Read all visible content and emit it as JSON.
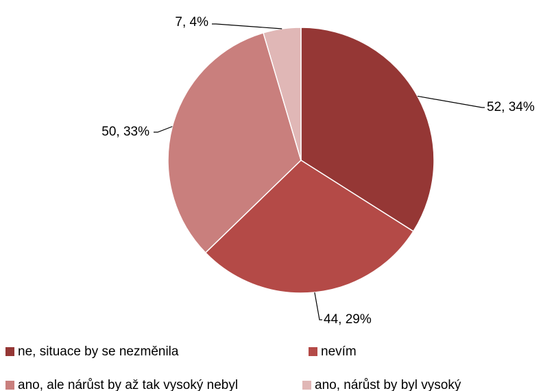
{
  "chart_data": {
    "type": "pie",
    "categories": [
      "ne, situace by se nezměnila",
      "nevím",
      "ano, ale nárůst by až tak vysoký nebyl",
      "ano, nárůst by byl vysoký"
    ],
    "values": [
      52,
      44,
      50,
      7
    ],
    "value_labels": [
      "52, 34%",
      "44, 29%",
      "50, 33%",
      "7, 4%"
    ],
    "colors": [
      "#953735",
      "#b44a47",
      "#c97f7d",
      "#e0b7b6"
    ],
    "legend": "bottom"
  }
}
